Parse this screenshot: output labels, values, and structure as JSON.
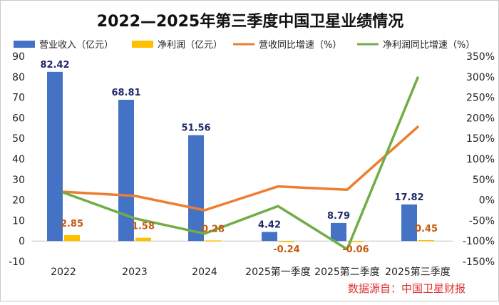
{
  "chart_data": {
    "type": "bar",
    "title": "2022—2025年第三季度中国卫星业绩情况",
    "categories": [
      "2022",
      "2023",
      "2024",
      "2025第一季度",
      "2025第二季度",
      "2025第三季度"
    ],
    "series": [
      {
        "name": "营业收入（亿元）",
        "kind": "bar",
        "axis": "left",
        "color": "#4472c4",
        "values": [
          82.42,
          68.81,
          51.56,
          4.42,
          8.79,
          17.82
        ],
        "labels": [
          "82.42",
          "68.81",
          "51.56",
          "4.42",
          "8.79",
          "17.82"
        ]
      },
      {
        "name": "净利润（亿元）",
        "kind": "bar",
        "axis": "left",
        "color": "#ffc000",
        "values": [
          2.85,
          1.58,
          0.28,
          -0.24,
          -0.06,
          0.45
        ],
        "labels": [
          "2.85",
          "1.58",
          "0.28",
          "-0.24",
          "-0.06",
          "0.45"
        ]
      },
      {
        "name": "营收同比增速（%）",
        "kind": "line",
        "axis": "right",
        "color": "#ed7d31",
        "values": [
          20,
          10,
          -25,
          33,
          25,
          178
        ]
      },
      {
        "name": "净利润同比增速（%）",
        "kind": "line",
        "axis": "right",
        "color": "#70ad47",
        "values": [
          18,
          -45,
          -82,
          -15,
          -120,
          298
        ]
      }
    ],
    "left_axis": {
      "ylim": [
        -10,
        90
      ],
      "ticks": [
        -10,
        0,
        10,
        20,
        30,
        40,
        50,
        60,
        70,
        80,
        90
      ]
    },
    "right_axis": {
      "ylim": [
        -150,
        350
      ],
      "ticks": [
        -150,
        -100,
        -50,
        0,
        50,
        100,
        150,
        200,
        250,
        300,
        350
      ],
      "tick_labels": [
        "-150%",
        "-100%",
        "-50%",
        "0%",
        "50%",
        "100%",
        "150%",
        "200%",
        "250%",
        "300%",
        "350%"
      ]
    },
    "legend_position": "top",
    "source_note": "数据源自：中国卫星财报"
  }
}
